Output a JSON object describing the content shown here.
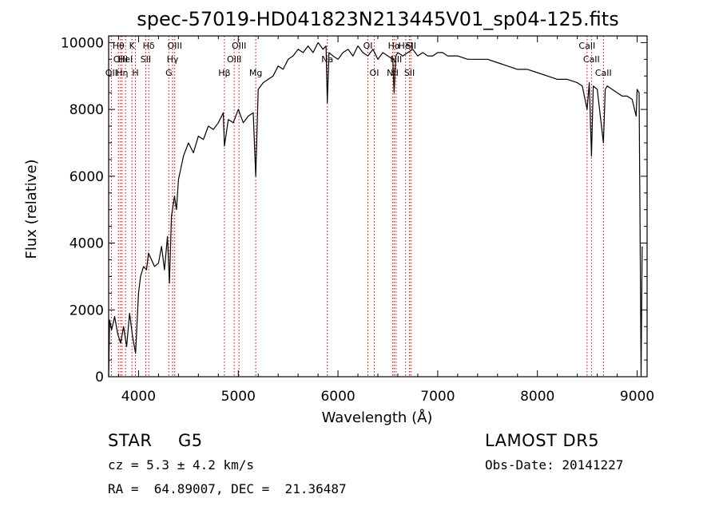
{
  "chart_data": {
    "type": "line",
    "title": "spec-57019-HD041823N213445V01_sp04-125.fits",
    "xlabel": "Wavelength (Å)",
    "ylabel": "Flux (relative)",
    "xlim": [
      3700,
      9100
    ],
    "ylim": [
      0,
      10200
    ],
    "xticks": [
      4000,
      5000,
      6000,
      7000,
      8000,
      9000
    ],
    "yticks": [
      0,
      2000,
      4000,
      6000,
      8000,
      10000
    ],
    "line_color": "#000000",
    "marker_color": "#cc0000",
    "spectrum": {
      "x": [
        3700,
        3710,
        3730,
        3760,
        3790,
        3820,
        3850,
        3880,
        3910,
        3940,
        3970,
        4000,
        4020,
        4050,
        4080,
        4100,
        4130,
        4160,
        4200,
        4230,
        4260,
        4290,
        4310,
        4330,
        4360,
        4380,
        4400,
        4450,
        4500,
        4550,
        4600,
        4650,
        4700,
        4750,
        4800,
        4850,
        4861,
        4900,
        4950,
        5000,
        5050,
        5100,
        5150,
        5175,
        5200,
        5250,
        5300,
        5350,
        5400,
        5450,
        5500,
        5550,
        5600,
        5650,
        5700,
        5750,
        5800,
        5850,
        5880,
        5893,
        5910,
        5950,
        6000,
        6050,
        6100,
        6150,
        6200,
        6250,
        6300,
        6350,
        6400,
        6450,
        6500,
        6550,
        6563,
        6580,
        6600,
        6650,
        6700,
        6750,
        6800,
        6850,
        6900,
        6950,
        7000,
        7050,
        7100,
        7150,
        7200,
        7300,
        7400,
        7500,
        7600,
        7700,
        7800,
        7900,
        8000,
        8100,
        8200,
        8300,
        8400,
        8450,
        8498,
        8520,
        8542,
        8560,
        8600,
        8662,
        8680,
        8700,
        8750,
        8800,
        8850,
        8900,
        8950,
        8990,
        9000,
        9020,
        9040,
        9050
      ],
      "y": [
        0,
        1700,
        1400,
        1800,
        1300,
        1000,
        1500,
        900,
        1900,
        1200,
        700,
        2500,
        3000,
        3300,
        3200,
        3700,
        3500,
        3300,
        3400,
        3900,
        3200,
        4200,
        2800,
        4800,
        5400,
        5000,
        5900,
        6600,
        7000,
        6700,
        7200,
        7100,
        7500,
        7400,
        7600,
        7900,
        6900,
        7700,
        7600,
        8000,
        7600,
        7800,
        7900,
        6000,
        8600,
        8800,
        8900,
        9000,
        9300,
        9200,
        9500,
        9600,
        9800,
        9700,
        9900,
        9700,
        10000,
        9800,
        9900,
        8200,
        9700,
        9600,
        9500,
        9700,
        9800,
        9600,
        9900,
        9700,
        9600,
        9800,
        9500,
        9700,
        9600,
        9500,
        8500,
        9600,
        9700,
        9600,
        9700,
        9800,
        9600,
        9700,
        9600,
        9600,
        9700,
        9700,
        9600,
        9600,
        9600,
        9500,
        9500,
        9500,
        9400,
        9300,
        9200,
        9200,
        9100,
        9000,
        8900,
        8900,
        8800,
        8700,
        8000,
        8800,
        6600,
        8700,
        8600,
        7000,
        8600,
        8700,
        8600,
        8500,
        8400,
        8400,
        8300,
        7800,
        8600,
        8500,
        0,
        3900
      ]
    },
    "lines": [
      {
        "x": 3727,
        "label": "OII",
        "row": 2
      },
      {
        "x": 3798,
        "label": "Hθ",
        "row": 0
      },
      {
        "x": 3820,
        "label": "OIII",
        "row": 1
      },
      {
        "x": 3835,
        "label": "Hη",
        "row": 2
      },
      {
        "x": 3869,
        "label": "HeI",
        "row": 1
      },
      {
        "x": 3934,
        "label": "K",
        "row": 0
      },
      {
        "x": 3969,
        "label": "H",
        "row": 2
      },
      {
        "x": 4072,
        "label": "SII",
        "row": 1
      },
      {
        "x": 4102,
        "label": "Hδ",
        "row": 0
      },
      {
        "x": 4304,
        "label": "G",
        "row": 2
      },
      {
        "x": 4341,
        "label": "Hγ",
        "row": 1
      },
      {
        "x": 4363,
        "label": "OIII",
        "row": 0
      },
      {
        "x": 4861,
        "label": "Hβ",
        "row": 2
      },
      {
        "x": 4959,
        "label": "OIII",
        "row": 1
      },
      {
        "x": 5007,
        "label": "OIII",
        "row": 0
      },
      {
        "x": 5175,
        "label": "Mg",
        "row": 2
      },
      {
        "x": 5893,
        "label": "Na",
        "row": 1
      },
      {
        "x": 6300,
        "label": "OI",
        "row": 0
      },
      {
        "x": 6364,
        "label": "OI",
        "row": 2
      },
      {
        "x": 6548,
        "label": "NII",
        "row": 2
      },
      {
        "x": 6563,
        "label": "Hα",
        "row": 0
      },
      {
        "x": 6583,
        "label": "NII",
        "row": 1
      },
      {
        "x": 6678,
        "label": "HeI",
        "row": 0
      },
      {
        "x": 6717,
        "label": "SII",
        "row": 2
      },
      {
        "x": 6731,
        "label": "SII",
        "row": 0
      },
      {
        "x": 8498,
        "label": "CaII",
        "row": 0
      },
      {
        "x": 8542,
        "label": "CaII",
        "row": 1
      },
      {
        "x": 8662,
        "label": "CaII",
        "row": 2
      }
    ]
  },
  "info": {
    "class_label": "STAR",
    "subclass": "G5",
    "survey": "LAMOST DR5",
    "cz": "cz = 5.3 ± 4.2 km/s",
    "obs_date": "Obs-Date: 20141227",
    "coords": "RA =  64.89007, DEC =  21.36487"
  }
}
